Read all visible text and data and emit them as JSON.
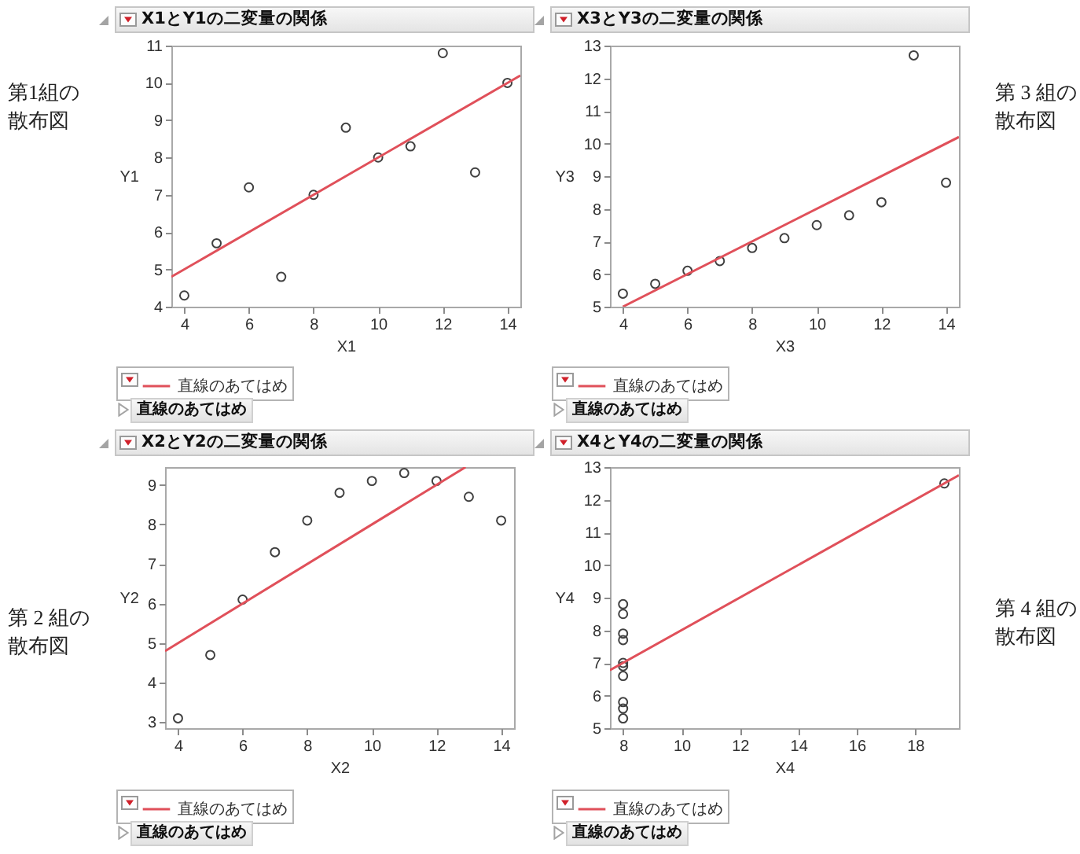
{
  "chart_data": [
    {
      "type": "scatter",
      "title": "X1とY1の二変量の関係",
      "xlabel": "X1",
      "ylabel": "Y1",
      "xlim": [
        3.6,
        14.4
      ],
      "ylim": [
        4,
        11
      ],
      "xticks": [
        4,
        6,
        8,
        10,
        12,
        14
      ],
      "yticks": [
        4,
        5,
        6,
        7,
        8,
        9,
        10,
        11
      ],
      "legend": "bottom left",
      "series": [
        {
          "type": "scatter",
          "marker": "circle",
          "color": "#404040",
          "x": [
            4,
            5,
            6,
            7,
            8,
            9,
            10,
            11,
            12,
            13,
            14
          ],
          "values": [
            4.3,
            5.7,
            7.2,
            4.8,
            7.0,
            8.8,
            8.0,
            8.3,
            10.8,
            7.6,
            10.0
          ]
        },
        {
          "type": "line",
          "name": "直線のあてはめ",
          "color": "#e0505a",
          "x": [
            3.6,
            14.4
          ],
          "values": [
            4.8,
            10.2
          ]
        }
      ],
      "annotations": [
        "第1組の散布図",
        "直線のあてはめ"
      ]
    },
    {
      "type": "scatter",
      "title": "X3とY3の二変量の関係",
      "xlabel": "X3",
      "ylabel": "Y3",
      "xlim": [
        3.6,
        14.4
      ],
      "ylim": [
        5,
        13
      ],
      "xticks": [
        4,
        6,
        8,
        10,
        12,
        14
      ],
      "yticks": [
        5,
        6,
        7,
        8,
        9,
        10,
        11,
        12,
        13
      ],
      "legend": "bottom left",
      "series": [
        {
          "type": "scatter",
          "marker": "circle",
          "color": "#404040",
          "x": [
            4,
            5,
            6,
            7,
            8,
            9,
            10,
            11,
            12,
            13,
            14
          ],
          "values": [
            5.4,
            5.7,
            6.1,
            6.4,
            6.8,
            7.1,
            7.5,
            7.8,
            8.2,
            12.7,
            8.8
          ]
        },
        {
          "type": "line",
          "name": "直線のあてはめ",
          "color": "#e0505a",
          "x": [
            4,
            14.4
          ],
          "values": [
            5,
            10.2
          ]
        }
      ],
      "annotations": [
        "第 3 組の散布図",
        "直線のあてはめ"
      ]
    },
    {
      "type": "scatter",
      "title": "X2とY2の二変量の関係",
      "xlabel": "X2",
      "ylabel": "Y2",
      "xlim": [
        3.6,
        14.4
      ],
      "ylim": [
        2.85,
        9.45
      ],
      "xticks": [
        4,
        6,
        8,
        10,
        12,
        14
      ],
      "yticks": [
        3,
        4,
        5,
        6,
        7,
        8,
        9
      ],
      "legend": "bottom left",
      "series": [
        {
          "type": "scatter",
          "marker": "circle",
          "color": "#404040",
          "x": [
            4,
            5,
            6,
            7,
            8,
            9,
            10,
            11,
            12,
            13,
            14
          ],
          "values": [
            3.1,
            4.7,
            6.1,
            7.3,
            8.1,
            8.8,
            9.1,
            9.3,
            9.1,
            8.7,
            8.1
          ]
        },
        {
          "type": "line",
          "name": "直線のあてはめ",
          "color": "#e0505a",
          "x": [
            3.6,
            12.9
          ],
          "values": [
            4.8,
            9.45
          ]
        }
      ],
      "annotations": [
        "第 2 組の散布図",
        "直線のあてはめ"
      ]
    },
    {
      "type": "scatter",
      "title": "X4とY4の二変量の関係",
      "xlabel": "X4",
      "ylabel": "Y4",
      "xlim": [
        7.55,
        19.5
      ],
      "ylim": [
        5,
        13
      ],
      "xticks": [
        8,
        10,
        12,
        14,
        16,
        18
      ],
      "yticks": [
        5,
        6,
        7,
        8,
        9,
        10,
        11,
        12,
        13
      ],
      "legend": "bottom left",
      "series": [
        {
          "type": "scatter",
          "marker": "circle",
          "color": "#404040",
          "x": [
            8,
            8,
            8,
            8,
            8,
            8,
            8,
            8,
            8,
            8,
            19
          ],
          "values": [
            5.3,
            5.6,
            5.8,
            6.6,
            6.9,
            7.0,
            7.7,
            7.9,
            8.5,
            8.8,
            12.5
          ]
        },
        {
          "type": "line",
          "name": "直線のあてはめ",
          "color": "#e0505a",
          "x": [
            7.55,
            19.5
          ],
          "values": [
            6.78,
            12.75
          ]
        }
      ],
      "annotations": [
        "第 4 組の散布図",
        "直線のあてはめ"
      ]
    }
  ]
}
